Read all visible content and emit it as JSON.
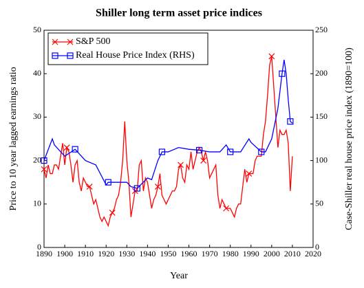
{
  "chart_data": {
    "type": "line",
    "title": "Shiller long term asset price indices",
    "x_label": "Year",
    "y_label": "Price to 10 year lagged earnings ratio",
    "y2_label": "Case-Shiller real house price index (1890=100)",
    "xlim": [
      1890,
      2020
    ],
    "xticks": [
      1890,
      1900,
      1910,
      1920,
      1930,
      1940,
      1950,
      1960,
      1970,
      1980,
      1990,
      2000,
      2010,
      2020
    ],
    "ylim": [
      0,
      50
    ],
    "yticks": [
      0,
      10,
      20,
      30,
      40,
      50
    ],
    "y2lim": [
      0,
      250
    ],
    "y2ticks": [
      0,
      50,
      100,
      150,
      200,
      250
    ],
    "legend": "upper left",
    "series": [
      {
        "name": "S&P 500",
        "color": "#ff0000",
        "marker": "x",
        "x": [
          1890,
          1891,
          1892,
          1893,
          1894,
          1895,
          1896,
          1897,
          1898,
          1899,
          1900,
          1901,
          1902,
          1903,
          1904,
          1905,
          1906,
          1907,
          1908,
          1909,
          1910,
          1911,
          1912,
          1913,
          1914,
          1915,
          1916,
          1917,
          1918,
          1919,
          1920,
          1921,
          1922,
          1923,
          1924,
          1925,
          1926,
          1927,
          1928,
          1929,
          1930,
          1931,
          1932,
          1933,
          1934,
          1935,
          1936,
          1937,
          1938,
          1939,
          1940,
          1941,
          1942,
          1943,
          1944,
          1945,
          1946,
          1947,
          1948,
          1949,
          1950,
          1951,
          1952,
          1953,
          1954,
          1955,
          1956,
          1957,
          1958,
          1959,
          1960,
          1961,
          1962,
          1963,
          1964,
          1965,
          1966,
          1967,
          1968,
          1969,
          1970,
          1971,
          1972,
          1973,
          1974,
          1975,
          1976,
          1977,
          1978,
          1979,
          1980,
          1981,
          1982,
          1983,
          1984,
          1985,
          1986,
          1987,
          1988,
          1989,
          1990,
          1991,
          1992,
          1993,
          1994,
          1995,
          1996,
          1997,
          1998,
          1999,
          2000,
          2001,
          2002,
          2003,
          2004,
          2005,
          2006,
          2007,
          2008,
          2009,
          2010
        ],
        "values": [
          18,
          16,
          19,
          17,
          17,
          19,
          19,
          18,
          21,
          24,
          19,
          23,
          22,
          19,
          15,
          19,
          20,
          15,
          13,
          16,
          15,
          14,
          14,
          12,
          10,
          11,
          9,
          7,
          6,
          7,
          6,
          5,
          7,
          8,
          9,
          11,
          12,
          15,
          20,
          29,
          20,
          15,
          7,
          10,
          13,
          13,
          19,
          20,
          13,
          16,
          15,
          12,
          9,
          11,
          12,
          14,
          17,
          12,
          11,
          10,
          11,
          12,
          13,
          13,
          14,
          18,
          19,
          16,
          15,
          19,
          18,
          22,
          18,
          20,
          22,
          23,
          22,
          20,
          22,
          20,
          16,
          17,
          18,
          19,
          12,
          9,
          11,
          10,
          9,
          9,
          9,
          8,
          7,
          9,
          10,
          10,
          14,
          18,
          15,
          17,
          17,
          17,
          20,
          21,
          21,
          21,
          26,
          29,
          35,
          42,
          44,
          37,
          30,
          23,
          27,
          26,
          26,
          27,
          24,
          13,
          21
        ]
      },
      {
        "name": "Real House Price Index (RHS)",
        "color": "#0000ff",
        "marker": "square",
        "axis": "y2",
        "x": [
          1890,
          1894,
          1895,
          1900,
          1905,
          1910,
          1915,
          1920,
          1921,
          1925,
          1930,
          1932,
          1935,
          1940,
          1942,
          1945,
          1947,
          1950,
          1955,
          1960,
          1965,
          1970,
          1975,
          1978,
          1980,
          1985,
          1989,
          1990,
          1995,
          1997,
          2000,
          2003,
          2005,
          2006,
          2007,
          2008,
          2009,
          2010
        ],
        "values": [
          100,
          125,
          118,
          105,
          113,
          100,
          95,
          72,
          75,
          75,
          75,
          70,
          68,
          80,
          78,
          100,
          110,
          110,
          115,
          113,
          112,
          110,
          110,
          118,
          110,
          110,
          125,
          121,
          110,
          110,
          125,
          160,
          200,
          216,
          200,
          170,
          145,
          143
        ]
      }
    ]
  }
}
